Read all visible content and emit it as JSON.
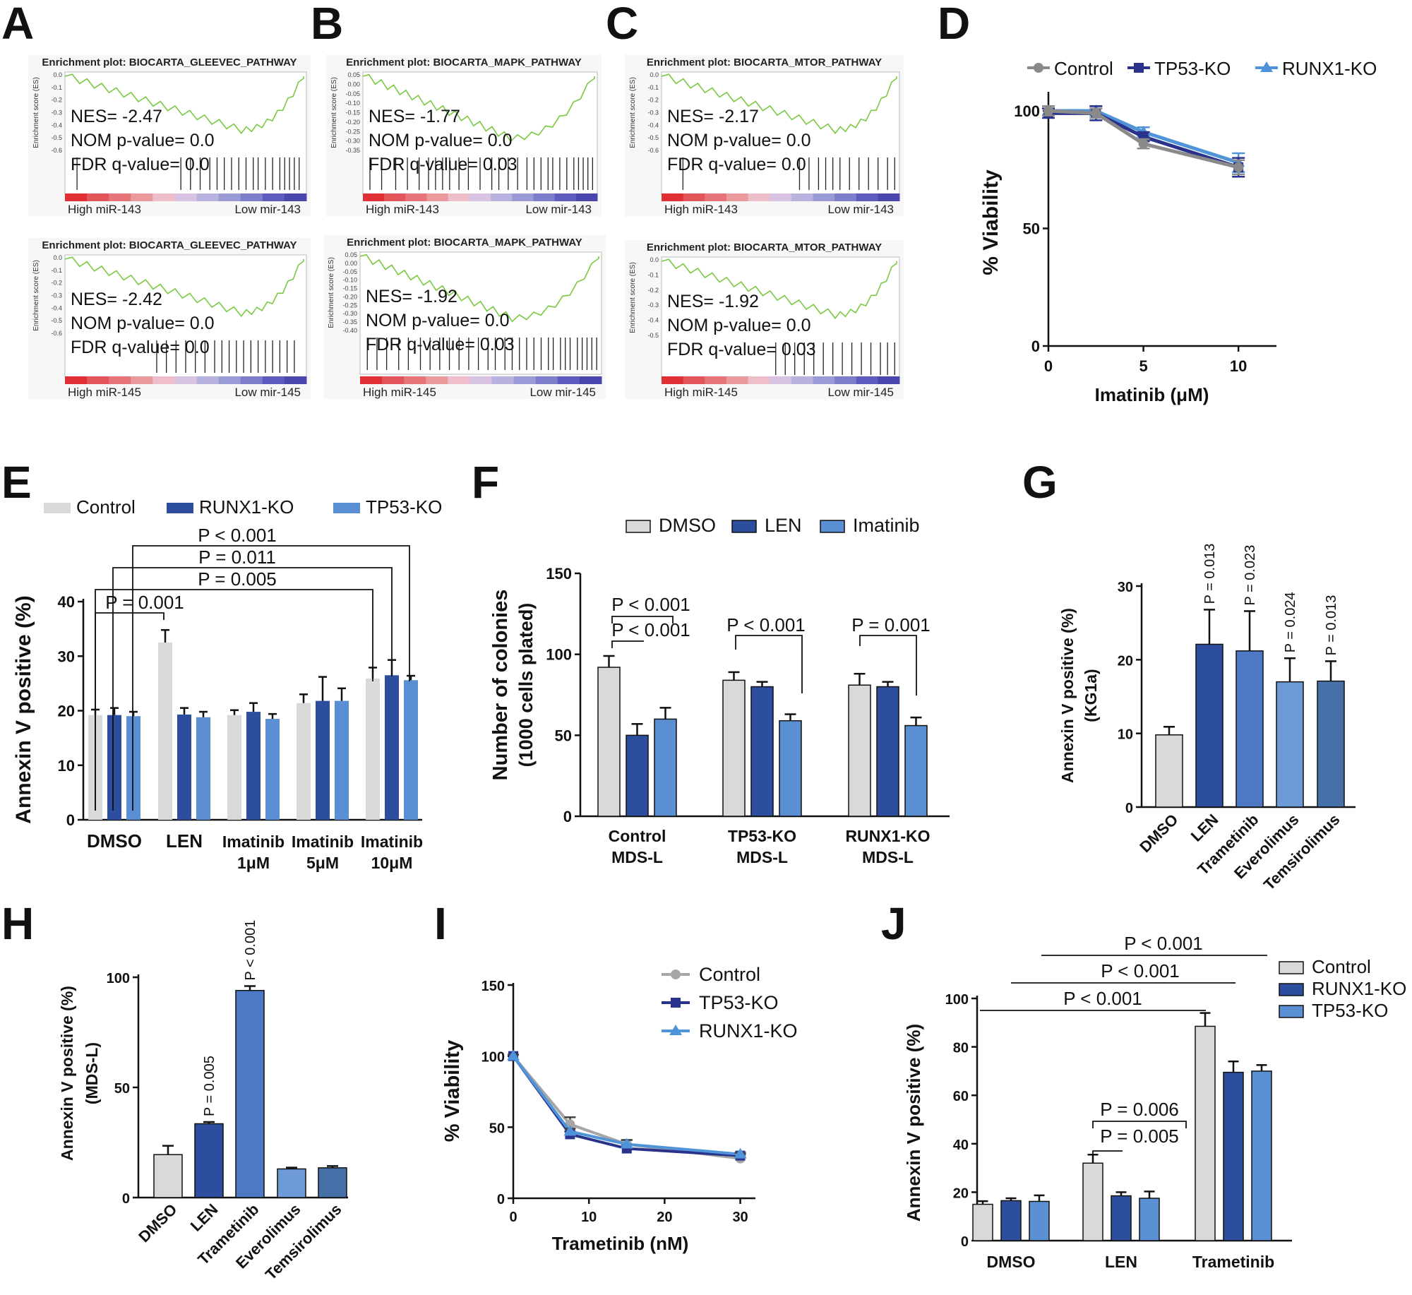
{
  "colors": {
    "gray": "#d8d9d9",
    "dark_blue": "#2d4e9e",
    "mid_blue": "#4c78c4",
    "light_blue": "#5a8fd3",
    "g_light": "#6d9bd7",
    "g_teal": "#4570a8",
    "line_gray": "#8a8a8a",
    "line_navy": "#29338c",
    "line_light": "#4f93d9",
    "es_green": "#7ac943"
  },
  "panels": {
    "a": "A",
    "b": "B",
    "c": "C",
    "d": "D",
    "e": "E",
    "f": "F",
    "g": "G",
    "h": "H",
    "i": "I",
    "j": "J"
  },
  "gsea": [
    {
      "title": "Enrichment plot: BIOCARTA_GLEEVEC_PATHWAY",
      "ylabel": "Enrichment score (ES)",
      "ticks": [
        "0.0",
        "-0.1",
        "-0.2",
        "-0.3",
        "-0.4",
        "-0.5",
        "-0.6"
      ],
      "nes": "NES= -2.47",
      "nom": "NOM p-value= 0.0",
      "fdr": "FDR q-value= 0.0",
      "high": "High miR-143",
      "low": "Low mir-143"
    },
    {
      "title": "Enrichment plot: BIOCARTA_MAPK_PATHWAY",
      "ylabel": "Enrichment score (ES)",
      "ticks": [
        "0.05",
        "0.00",
        "-0.05",
        "-0.10",
        "-0.15",
        "-0.20",
        "-0.25",
        "-0.30",
        "-0.35"
      ],
      "nes": "NES= -1.77",
      "nom": "NOM p-value= 0.0",
      "fdr": "FDR q-value= 0.03",
      "high": "High miR-143",
      "low": "Low mir-143"
    },
    {
      "title": "Enrichment plot: BIOCARTA_MTOR_PATHWAY",
      "ylabel": "Enrichment score (ES)",
      "ticks": [
        "0.0",
        "-0.1",
        "-0.2",
        "-0.3",
        "-0.4",
        "-0.5",
        "-0.6"
      ],
      "nes": "NES= -2.17",
      "nom": "NOM p-value= 0.0",
      "fdr": "FDR q-value= 0.0",
      "high": "High miR-143",
      "low": "Low mir-143"
    },
    {
      "title": "Enrichment plot: BIOCARTA_GLEEVEC_PATHWAY",
      "ylabel": "Enrichment score (ES)",
      "ticks": [
        "0.0",
        "-0.1",
        "-0.2",
        "-0.3",
        "-0.4",
        "-0.5",
        "-0.6"
      ],
      "nes": "NES= -2.42",
      "nom": "NOM p-value= 0.0",
      "fdr": "FDR q-value= 0.0",
      "high": "High miR-145",
      "low": "Low mir-145"
    },
    {
      "title": "Enrichment plot: BIOCARTA_MAPK_PATHWAY",
      "ylabel": "Enrichment score (ES)",
      "ticks": [
        "0.05",
        "0.00",
        "-0.05",
        "-0.10",
        "-0.15",
        "-0.20",
        "-0.25",
        "-0.30",
        "-0.35",
        "-0.40"
      ],
      "nes": "NES= -1.92",
      "nom": "NOM p-value= 0.0",
      "fdr": "FDR q-value= 0.03",
      "high": "High miR-145",
      "low": "Low mir-145"
    },
    {
      "title": "Enrichment plot: BIOCARTA_MTOR_PATHWAY",
      "ylabel": "Enrichment score (ES)",
      "ticks": [
        "0.0",
        "-0.1",
        "-0.2",
        "-0.3",
        "-0.4",
        "-0.5"
      ],
      "nes": "NES= -1.92",
      "nom": "NOM p-value= 0.0",
      "fdr": "FDR q-value= 0.03",
      "high": "High miR-145",
      "low": "Low mir-145"
    }
  ],
  "chart_data": [
    {
      "panel": "D",
      "type": "line",
      "xlabel": "Imatinib (μM)",
      "ylabel": "% Viability",
      "xlim": [
        0,
        12
      ],
      "ylim": [
        0,
        100
      ],
      "xticks": [
        0,
        5,
        10
      ],
      "yticks": [
        0,
        50,
        100
      ],
      "series": [
        {
          "name": "Control",
          "x": [
            0,
            2.5,
            5,
            10
          ],
          "values": [
            100,
            99,
            86,
            76
          ],
          "err": [
            2,
            2,
            2,
            3
          ]
        },
        {
          "name": "TP53-KO",
          "x": [
            0,
            2.5,
            5,
            10
          ],
          "values": [
            99,
            99,
            89,
            76
          ],
          "err": [
            2,
            3,
            2,
            4
          ]
        },
        {
          "name": "RUNX1-KO",
          "x": [
            0,
            2.5,
            5,
            10
          ],
          "values": [
            100,
            100,
            91,
            78
          ],
          "err": [
            2,
            2,
            2,
            4
          ]
        }
      ]
    },
    {
      "panel": "E",
      "type": "bar",
      "ylabel": "Annexin V positive (%)",
      "ylim": [
        0,
        40
      ],
      "yticks": [
        0,
        10,
        20,
        30,
        40
      ],
      "categories": [
        "DMSO",
        "LEN",
        "Imatinib 1μM",
        "Imatinib 5μM",
        "Imatinib 10μM"
      ],
      "category_lines": [
        [
          "DMSO"
        ],
        [
          "LEN"
        ],
        [
          "Imatinib",
          "1μM"
        ],
        [
          "Imatinib",
          "5μM"
        ],
        [
          "Imatinib",
          "10μM"
        ]
      ],
      "series": [
        {
          "name": "Control",
          "values": [
            19.2,
            32.5,
            19.2,
            21.4,
            25.9
          ],
          "err": [
            1.0,
            2.3,
            0.9,
            1.6,
            2.0
          ]
        },
        {
          "name": "RUNX1-KO",
          "values": [
            19.2,
            19.3,
            19.8,
            21.8,
            26.5
          ],
          "err": [
            1.3,
            1.2,
            1.6,
            4.4,
            2.8
          ]
        },
        {
          "name": "TP53-KO",
          "values": [
            19.0,
            18.8,
            18.5,
            21.8,
            25.6
          ],
          "err": [
            0.8,
            1.0,
            0.9,
            2.3,
            0.8
          ]
        }
      ],
      "annotations": [
        "P = 0.001",
        "P = 0.005",
        "P = 0.011",
        "P < 0.001"
      ]
    },
    {
      "panel": "F",
      "type": "bar",
      "ylabel": "Number of colonies",
      "ylabel2": "(1000 cells plated)",
      "ylim": [
        0,
        150
      ],
      "yticks": [
        0,
        50,
        100,
        150
      ],
      "categories": [
        "Control MDS-L",
        "TP53-KO MDS-L",
        "RUNX1-KO MDS-L"
      ],
      "category_lines": [
        [
          "Control",
          "MDS-L"
        ],
        [
          "TP53-KO",
          "MDS-L"
        ],
        [
          "RUNX1-KO",
          "MDS-L"
        ]
      ],
      "series": [
        {
          "name": "DMSO",
          "values": [
            92,
            84,
            81
          ],
          "err": [
            7,
            5,
            7
          ]
        },
        {
          "name": "LEN",
          "values": [
            50,
            80,
            80
          ],
          "err": [
            7,
            3,
            3
          ]
        },
        {
          "name": "Imatinib",
          "values": [
            60,
            59,
            56
          ],
          "err": [
            7,
            4,
            5
          ]
        }
      ],
      "annotations": [
        "P < 0.001",
        "P < 0.001",
        "P < 0.001",
        "P = 0.001"
      ]
    },
    {
      "panel": "G",
      "type": "bar",
      "ylabel": "Annexin V positive (%)",
      "ylabel2": "(KG1a)",
      "ylim": [
        0,
        30
      ],
      "yticks": [
        0,
        10,
        20,
        30
      ],
      "categories": [
        "DMSO",
        "LEN",
        "Trametinib",
        "Everolimus",
        "Temsirolimus"
      ],
      "values": [
        9.8,
        22.1,
        21.2,
        17.0,
        17.1
      ],
      "err": [
        1.1,
        4.7,
        5.4,
        3.2,
        2.7
      ],
      "annotations": [
        "P = 0.013",
        "P = 0.023",
        "P = 0.024",
        "P = 0.013"
      ]
    },
    {
      "panel": "H",
      "type": "bar",
      "ylabel": "Annexin V positive (%)",
      "ylabel2": "(MDS-L)",
      "ylim": [
        0,
        100
      ],
      "yticks": [
        0,
        50,
        100
      ],
      "categories": [
        "DMSO",
        "LEN",
        "Trametinib",
        "Everolimus",
        "Temsirolimus"
      ],
      "values": [
        19.5,
        33.5,
        94.0,
        13.0,
        13.5
      ],
      "err": [
        4.0,
        0.8,
        2.0,
        0.6,
        0.8
      ],
      "annotations": [
        "P = 0.005",
        "P < 0.001"
      ]
    },
    {
      "panel": "I",
      "type": "line",
      "xlabel": "Trametinib (nM)",
      "ylabel": "% Viability",
      "xlim": [
        0,
        32
      ],
      "ylim": [
        0,
        150
      ],
      "xticks": [
        0,
        10,
        20,
        30
      ],
      "yticks": [
        0,
        50,
        100,
        150
      ],
      "series": [
        {
          "name": "Control",
          "x": [
            0,
            7.5,
            15,
            30
          ],
          "values": [
            100,
            52,
            38,
            28
          ],
          "err": [
            1,
            5,
            3,
            1
          ]
        },
        {
          "name": "TP53-KO",
          "x": [
            0,
            7.5,
            15,
            30
          ],
          "values": [
            100,
            45,
            35,
            30
          ],
          "err": [
            1,
            2,
            3,
            1
          ]
        },
        {
          "name": "RUNX1-KO",
          "x": [
            0,
            7.5,
            15,
            30
          ],
          "values": [
            100,
            47,
            38,
            31
          ],
          "err": [
            1,
            2,
            3,
            1
          ]
        }
      ]
    },
    {
      "panel": "J",
      "type": "bar",
      "ylabel": "Annexin V positive (%)",
      "ylim": [
        0,
        100
      ],
      "yticks": [
        0,
        20,
        40,
        60,
        80,
        100
      ],
      "categories": [
        "DMSO",
        "LEN",
        "Trametinib"
      ],
      "series": [
        {
          "name": "Control",
          "values": [
            15.0,
            32.0,
            88.5
          ],
          "err": [
            1.3,
            3.5,
            5.5
          ]
        },
        {
          "name": "RUNX1-KO",
          "values": [
            16.5,
            18.5,
            69.5
          ],
          "err": [
            1.0,
            1.5,
            4.5
          ]
        },
        {
          "name": "TP53-KO",
          "values": [
            16.2,
            17.5,
            70.0
          ],
          "err": [
            2.5,
            2.8,
            2.5
          ]
        }
      ],
      "annotations": [
        "P = 0.006",
        "P = 0.005",
        "P < 0.001",
        "P < 0.001",
        "P < 0.001"
      ]
    }
  ]
}
